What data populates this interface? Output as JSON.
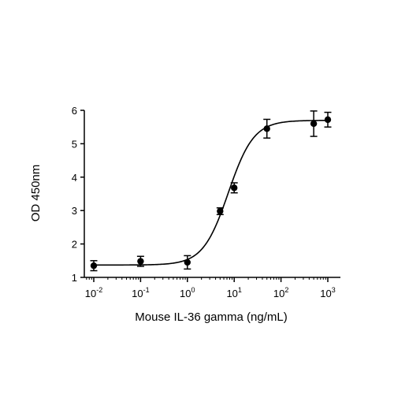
{
  "chart_data": {
    "type": "scatter",
    "title": "",
    "xlabel": "Mouse IL-36 gamma (ng/mL)",
    "ylabel": "OD 450nm",
    "x_scale": "log",
    "xlim": [
      0.01,
      1000
    ],
    "ylim": [
      1,
      6
    ],
    "x_ticks": [
      {
        "base": "10",
        "exp": "-2",
        "value": 0.01
      },
      {
        "base": "10",
        "exp": "-1",
        "value": 0.1
      },
      {
        "base": "10",
        "exp": "0",
        "value": 1
      },
      {
        "base": "10",
        "exp": "1",
        "value": 10
      },
      {
        "base": "10",
        "exp": "2",
        "value": 100
      },
      {
        "base": "10",
        "exp": "3",
        "value": 1000
      }
    ],
    "y_ticks": [
      "1",
      "2",
      "3",
      "4",
      "5",
      "6"
    ],
    "grid": false,
    "legend": "none",
    "marker_color": "#000000",
    "points": [
      {
        "x": 0.01,
        "y": 1.35,
        "err": 0.15
      },
      {
        "x": 0.1,
        "y": 1.48,
        "err": 0.15
      },
      {
        "x": 1,
        "y": 1.45,
        "err": 0.2
      },
      {
        "x": 5,
        "y": 2.98,
        "err": 0.1
      },
      {
        "x": 10,
        "y": 3.68,
        "err": 0.15
      },
      {
        "x": 50,
        "y": 5.45,
        "err": 0.28
      },
      {
        "x": 500,
        "y": 5.6,
        "err": 0.38
      },
      {
        "x": 1000,
        "y": 5.72,
        "err": 0.22
      }
    ],
    "fit_curve": {
      "model": "4PL",
      "bottom": 1.37,
      "top": 5.7,
      "ec50": 7.5,
      "hill": 1.6
    }
  }
}
